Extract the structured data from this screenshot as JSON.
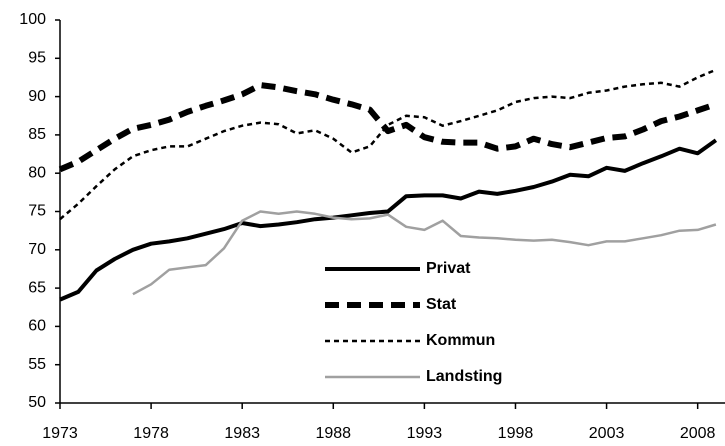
{
  "chart_data": {
    "type": "line",
    "x": [
      1973,
      1974,
      1975,
      1976,
      1977,
      1978,
      1979,
      1980,
      1981,
      1982,
      1983,
      1984,
      1985,
      1986,
      1987,
      1988,
      1989,
      1990,
      1991,
      1992,
      1993,
      1994,
      1995,
      1996,
      1997,
      1998,
      1999,
      2000,
      2001,
      2002,
      2003,
      2004,
      2005,
      2006,
      2007,
      2008,
      2009
    ],
    "xlim": [
      1973,
      2009.5
    ],
    "xticks": [
      1973,
      1978,
      1983,
      1988,
      1993,
      1998,
      2003,
      2008
    ],
    "ylim": [
      50,
      100
    ],
    "yticks": [
      50,
      55,
      60,
      65,
      70,
      75,
      80,
      85,
      90,
      95,
      100
    ],
    "series": [
      {
        "name": "Privat",
        "color": "#000000",
        "values": [
          63.5,
          64.5,
          67.3,
          68.8,
          70,
          70.8,
          71.1,
          71.5,
          72.1,
          72.7,
          73.5,
          73.1,
          73.3,
          73.6,
          74,
          74.2,
          74.5,
          74.8,
          75,
          77,
          77.1,
          77.1,
          76.7,
          77.6,
          77.3,
          77.7,
          78.2,
          78.9,
          79.8,
          79.6,
          80.7,
          80.3,
          81.3,
          82.2,
          83.2,
          82.6,
          84.3
        ]
      },
      {
        "name": "Stat",
        "color": "#000000",
        "values": [
          80.5,
          81.5,
          83,
          84.5,
          85.8,
          86.3,
          87,
          88,
          88.8,
          89.5,
          90.3,
          91.5,
          91.2,
          90.7,
          90.3,
          89.6,
          89,
          88.3,
          85.5,
          86.3,
          84.7,
          84.1,
          84,
          84,
          83.2,
          83.5,
          84.5,
          83.8,
          83.4,
          84,
          84.6,
          84.8,
          85.7,
          86.8,
          87.4,
          88.2,
          89
        ]
      },
      {
        "name": "Kommun",
        "color": "#000000",
        "values": [
          74,
          76,
          78.3,
          80.5,
          82.2,
          83,
          83.5,
          83.5,
          84.5,
          85.5,
          86.2,
          86.6,
          86.4,
          85.2,
          85.6,
          84.5,
          82.7,
          83.5,
          86.3,
          87.5,
          87.3,
          86.2,
          86.8,
          87.5,
          88.2,
          89.3,
          89.8,
          90,
          89.8,
          90.5,
          90.8,
          91.3,
          91.6,
          91.8,
          91.3,
          92.5,
          93.5
        ]
      },
      {
        "name": "Landsting",
        "color": "#a0a0a0",
        "values": [
          null,
          null,
          null,
          null,
          64.2,
          65.5,
          67.4,
          67.7,
          68,
          70.2,
          73.8,
          75,
          74.7,
          75,
          74.7,
          74.2,
          74,
          74.1,
          74.6,
          73,
          72.6,
          73.8,
          71.8,
          71.6,
          71.5,
          71.3,
          71.2,
          71.3,
          71,
          70.6,
          71.1,
          71.1,
          71.5,
          71.9,
          72.5,
          72.6,
          73.3
        ]
      }
    ]
  }
}
